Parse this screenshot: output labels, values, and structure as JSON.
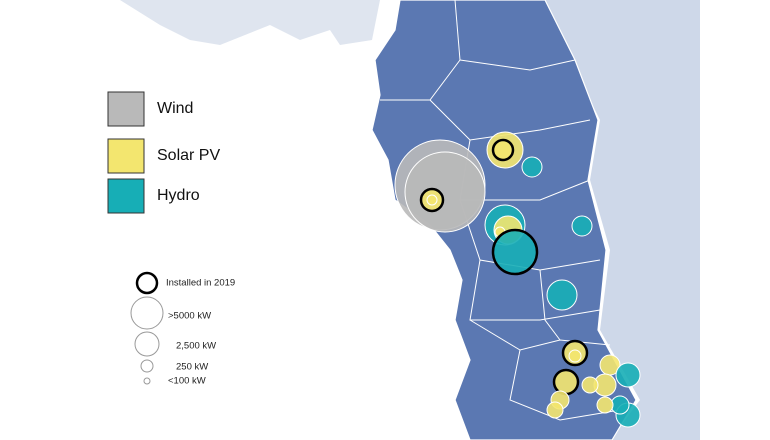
{
  "legend": {
    "items": [
      {
        "label": "Wind",
        "color": "#b9b9b9"
      },
      {
        "label": "Solar PV",
        "color": "#f3e66f"
      },
      {
        "label": "Hydro",
        "color": "#17aeb6"
      }
    ]
  },
  "size_legend": {
    "installed": "Installed in 2019",
    "sizes": [
      ">5000 kW",
      "2,500 kW",
      "250 kW",
      "<100 kW"
    ]
  }
}
